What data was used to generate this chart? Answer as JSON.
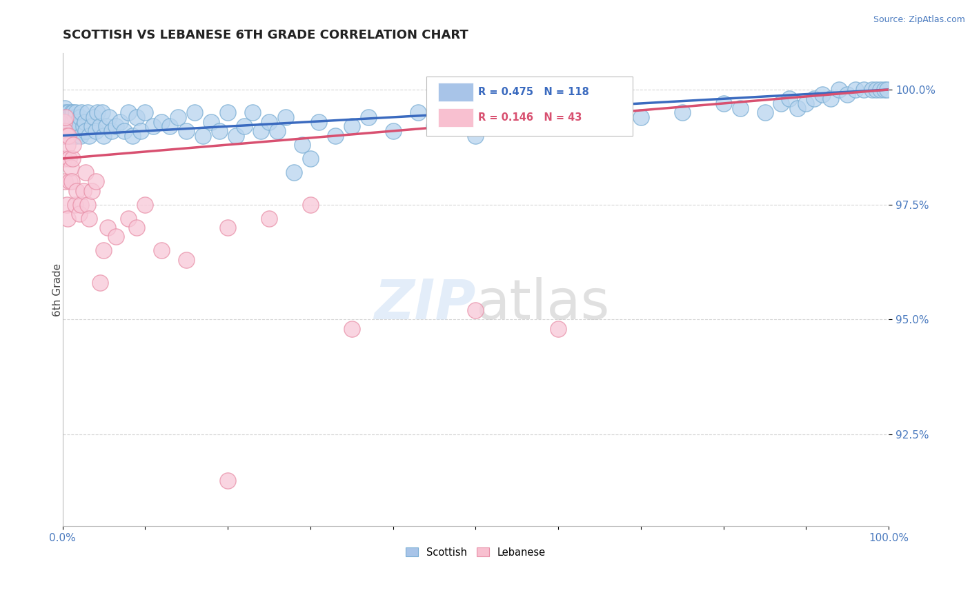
{
  "title": "SCOTTISH VS LEBANESE 6TH GRADE CORRELATION CHART",
  "source": "Source: ZipAtlas.com",
  "ylabel": "6th Grade",
  "ylabel_ticks": [
    92.5,
    95.0,
    97.5,
    100.0
  ],
  "ylabel_tick_labels": [
    "92.5%",
    "95.0%",
    "97.5%",
    "100.0%"
  ],
  "xmin": 0.0,
  "xmax": 1.0,
  "ymin": 90.5,
  "ymax": 100.8,
  "scottish_R": 0.475,
  "scottish_N": 118,
  "lebanese_R": 0.146,
  "lebanese_N": 43,
  "scottish_color": "#b8d4ee",
  "scottish_edge": "#7aaed4",
  "lebanese_color": "#f8c8d8",
  "lebanese_edge": "#e890a8",
  "trend_blue": "#3a6abf",
  "trend_pink": "#d85070",
  "legend_box_blue": "#a8c4e8",
  "legend_box_pink": "#f8c0d0",
  "scottish_x": [
    0.001,
    0.002,
    0.002,
    0.003,
    0.003,
    0.003,
    0.004,
    0.004,
    0.004,
    0.005,
    0.005,
    0.005,
    0.006,
    0.006,
    0.006,
    0.007,
    0.007,
    0.007,
    0.008,
    0.008,
    0.009,
    0.009,
    0.01,
    0.01,
    0.011,
    0.011,
    0.012,
    0.012,
    0.013,
    0.013,
    0.015,
    0.015,
    0.016,
    0.016,
    0.017,
    0.018,
    0.02,
    0.021,
    0.022,
    0.023,
    0.025,
    0.027,
    0.028,
    0.03,
    0.032,
    0.035,
    0.038,
    0.04,
    0.042,
    0.045,
    0.048,
    0.05,
    0.053,
    0.056,
    0.06,
    0.065,
    0.07,
    0.075,
    0.08,
    0.085,
    0.09,
    0.095,
    0.1,
    0.11,
    0.12,
    0.13,
    0.14,
    0.15,
    0.16,
    0.17,
    0.18,
    0.19,
    0.2,
    0.21,
    0.22,
    0.23,
    0.24,
    0.25,
    0.26,
    0.27,
    0.28,
    0.29,
    0.3,
    0.31,
    0.33,
    0.35,
    0.37,
    0.4,
    0.43,
    0.45,
    0.48,
    0.5,
    0.52,
    0.55,
    0.58,
    0.6,
    0.65,
    0.7,
    0.75,
    0.8,
    0.82,
    0.85,
    0.87,
    0.88,
    0.89,
    0.9,
    0.91,
    0.92,
    0.93,
    0.94,
    0.95,
    0.96,
    0.97,
    0.98,
    0.985,
    0.99,
    0.995,
    0.998
  ],
  "scottish_y": [
    99.1,
    99.3,
    99.0,
    99.4,
    99.1,
    99.6,
    99.2,
    99.4,
    99.5,
    99.1,
    99.3,
    99.0,
    99.4,
    99.2,
    99.0,
    99.3,
    99.1,
    99.5,
    99.2,
    99.4,
    99.0,
    99.3,
    99.2,
    99.4,
    99.1,
    99.5,
    99.2,
    99.3,
    99.5,
    99.0,
    99.2,
    99.4,
    99.1,
    99.5,
    99.0,
    99.3,
    99.2,
    99.4,
    99.0,
    99.5,
    99.2,
    99.3,
    99.1,
    99.5,
    99.0,
    99.2,
    99.4,
    99.1,
    99.5,
    99.2,
    99.5,
    99.0,
    99.2,
    99.4,
    99.1,
    99.2,
    99.3,
    99.1,
    99.5,
    99.0,
    99.4,
    99.1,
    99.5,
    99.2,
    99.3,
    99.2,
    99.4,
    99.1,
    99.5,
    99.0,
    99.3,
    99.1,
    99.5,
    99.0,
    99.2,
    99.5,
    99.1,
    99.3,
    99.1,
    99.4,
    98.2,
    98.8,
    98.5,
    99.3,
    99.0,
    99.2,
    99.4,
    99.1,
    99.5,
    99.2,
    99.5,
    99.0,
    99.4,
    99.3,
    99.2,
    99.5,
    99.6,
    99.4,
    99.5,
    99.7,
    99.6,
    99.5,
    99.7,
    99.8,
    99.6,
    99.7,
    99.8,
    99.9,
    99.8,
    100.0,
    99.9,
    100.0,
    100.0,
    100.0,
    100.0,
    100.0,
    100.0,
    100.0
  ],
  "lebanese_x": [
    0.001,
    0.002,
    0.002,
    0.003,
    0.003,
    0.004,
    0.005,
    0.005,
    0.006,
    0.006,
    0.007,
    0.008,
    0.009,
    0.01,
    0.011,
    0.012,
    0.013,
    0.015,
    0.017,
    0.02,
    0.022,
    0.025,
    0.028,
    0.03,
    0.032,
    0.035,
    0.04,
    0.045,
    0.05,
    0.055,
    0.065,
    0.08,
    0.09,
    0.1,
    0.12,
    0.2,
    0.25,
    0.3,
    0.35,
    0.5,
    0.6,
    0.2,
    0.15
  ],
  "lebanese_y": [
    99.0,
    99.3,
    98.5,
    99.1,
    98.0,
    99.4,
    99.0,
    97.5,
    98.8,
    97.2,
    99.0,
    98.5,
    98.0,
    98.3,
    98.0,
    98.5,
    98.8,
    97.5,
    97.8,
    97.3,
    97.5,
    97.8,
    98.2,
    97.5,
    97.2,
    97.8,
    98.0,
    95.8,
    96.5,
    97.0,
    96.8,
    97.2,
    97.0,
    97.5,
    96.5,
    97.0,
    97.2,
    97.5,
    94.8,
    95.2,
    94.8,
    91.5,
    96.3
  ],
  "scottish_trend_x0": 0.0,
  "scottish_trend_y0": 99.0,
  "scottish_trend_x1": 1.0,
  "scottish_trend_y1": 100.0,
  "lebanese_trend_x0": 0.0,
  "lebanese_trend_y0": 98.5,
  "lebanese_trend_x1": 1.0,
  "lebanese_trend_y1": 100.0
}
